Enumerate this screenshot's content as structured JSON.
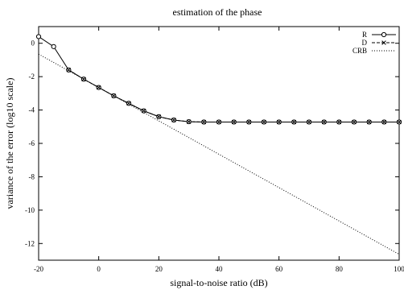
{
  "chart_data": {
    "type": "line",
    "title": "estimation of the phase",
    "xlabel": "signal-to-noise ratio (dB)",
    "ylabel": "variance of the error (log10 scale)",
    "xlim": [
      -20,
      100
    ],
    "ylim": [
      -13,
      1
    ],
    "xticks": [
      -20,
      0,
      20,
      40,
      60,
      80,
      100
    ],
    "yticks": [
      0,
      -2,
      -4,
      -6,
      -8,
      -10,
      -12
    ],
    "grid": false,
    "legend_position": "top-right",
    "series": [
      {
        "name": "R",
        "style": "solid",
        "marker": "circle",
        "x": [
          -20,
          -15,
          -10,
          -5,
          0,
          5,
          10,
          15,
          20,
          25,
          30,
          35,
          40,
          45,
          50,
          55,
          60,
          65,
          70,
          75,
          80,
          85,
          90,
          95,
          100
        ],
        "y": [
          0.4,
          -0.2,
          -1.6,
          -2.15,
          -2.65,
          -3.15,
          -3.6,
          -4.05,
          -4.4,
          -4.6,
          -4.7,
          -4.72,
          -4.72,
          -4.72,
          -4.72,
          -4.72,
          -4.72,
          -4.72,
          -4.72,
          -4.72,
          -4.72,
          -4.72,
          -4.72,
          -4.72,
          -4.72
        ]
      },
      {
        "name": "D",
        "style": "dashed",
        "marker": "cross",
        "x": [
          -10,
          -5,
          0,
          5,
          10,
          15,
          20,
          25,
          30,
          35,
          40,
          45,
          50,
          55,
          60,
          65,
          70,
          75,
          80,
          85,
          90,
          95,
          100
        ],
        "y": [
          -1.6,
          -2.15,
          -2.65,
          -3.15,
          -3.6,
          -4.05,
          -4.4,
          -4.6,
          -4.7,
          -4.72,
          -4.72,
          -4.72,
          -4.72,
          -4.72,
          -4.72,
          -4.72,
          -4.72,
          -4.72,
          -4.72,
          -4.72,
          -4.72,
          -4.72,
          -4.72
        ]
      },
      {
        "name": "CRB",
        "style": "dotted",
        "marker": "none",
        "x": [
          -20,
          100
        ],
        "y": [
          -0.65,
          -12.65
        ]
      }
    ]
  }
}
